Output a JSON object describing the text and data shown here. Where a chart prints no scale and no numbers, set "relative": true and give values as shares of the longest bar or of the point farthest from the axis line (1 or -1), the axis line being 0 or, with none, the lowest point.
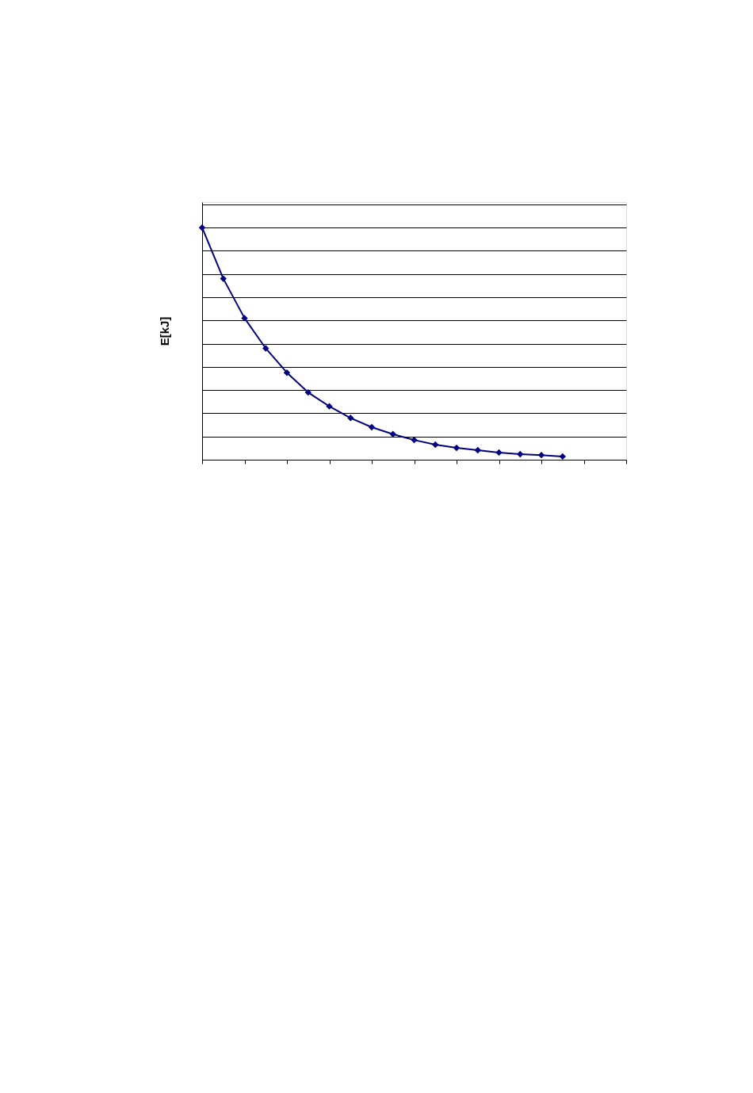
{
  "chart_data": {
    "type": "line",
    "ylabel": "E[kJ]",
    "relative": true,
    "categories": [
      null,
      null,
      null,
      null,
      null,
      null,
      null,
      null,
      null,
      null,
      null,
      null,
      null,
      null,
      null,
      null,
      null,
      null
    ],
    "series": [
      {
        "color": "#000080",
        "values": [
          1,
          0.78,
          0.61,
          0.48,
          0.375,
          0.29,
          0.23,
          0.18,
          0.14,
          0.11,
          0.085,
          0.065,
          0.051,
          0.041,
          0.031,
          0.024,
          0.02,
          0.014
        ]
      }
    ],
    "marker": "diamond",
    "line_style": "solid",
    "grid": "y",
    "tick_labels": false
  }
}
